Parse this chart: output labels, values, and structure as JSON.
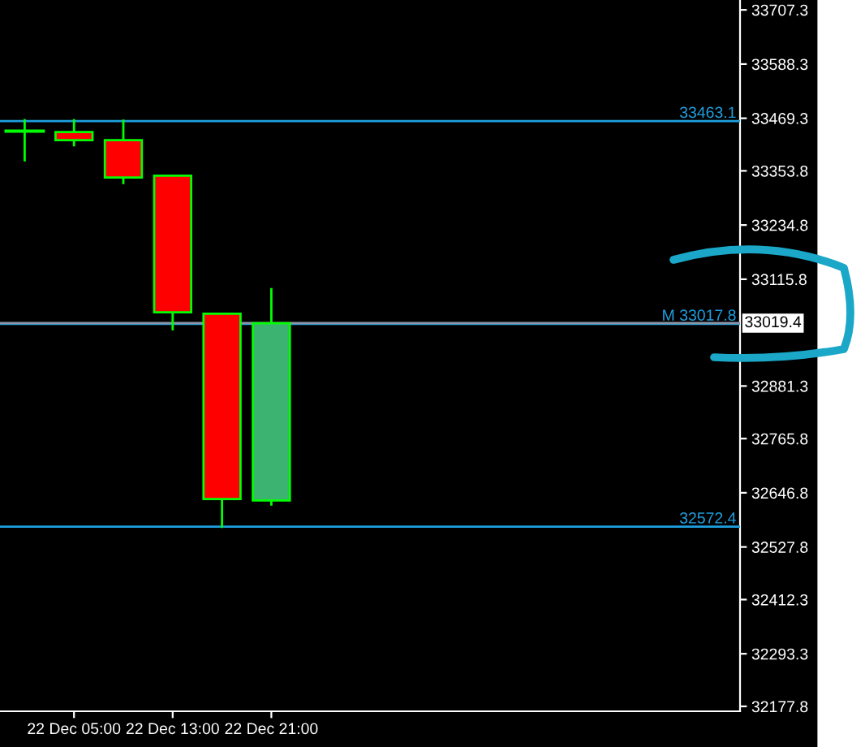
{
  "chart_data": {
    "type": "candlestick",
    "categories": [
      null,
      "22 Dec 05:00",
      null,
      "22 Dec 13:00",
      null,
      "22 Dec 21:00",
      null,
      null,
      null,
      null,
      null,
      null,
      null,
      null,
      null
    ],
    "ohlc": [
      [
        33441,
        33465,
        33377,
        33441
      ],
      [
        33439,
        33465,
        33410,
        33421
      ],
      [
        33421,
        33464,
        33327,
        33339
      ],
      [
        33343,
        33343,
        33006,
        33043
      ],
      [
        33040,
        33040,
        32572,
        32633
      ],
      [
        32630,
        33094,
        32621,
        33019
      ],
      null,
      null,
      null,
      null,
      null,
      null,
      null,
      null,
      null
    ],
    "colors": [
      "#00ff00",
      "#ff0000",
      "#ff0000",
      "#ff0000",
      "#ff0000",
      "#3cb371",
      null,
      null,
      null,
      null,
      null,
      null,
      null,
      null,
      null
    ],
    "color": "#00ff00",
    "ylim": [
      32167,
      33729
    ],
    "yticks": [
      32177.8,
      32293.3,
      32412.3,
      32527.8,
      32646.8,
      32765.8,
      32881.3,
      33115.8,
      33234.8,
      33353.8,
      33469.3,
      33588.3,
      33707.3
    ],
    "ref_lines": [
      {
        "axis": "y",
        "value": 33463.1,
        "label": "33463.1",
        "color": "#1e9fe0"
      },
      {
        "axis": "y",
        "value": 33017.8,
        "label": "M 33017.8",
        "color": "#1e9fe0"
      },
      {
        "axis": "y",
        "value": 32572.4,
        "label": "32572.4",
        "color": "#1e9fe0"
      },
      {
        "axis": "y",
        "value": 33019.4,
        "label": "33019.4",
        "color": "#8c96a8"
      }
    ],
    "grid": false,
    "legend": false
  }
}
